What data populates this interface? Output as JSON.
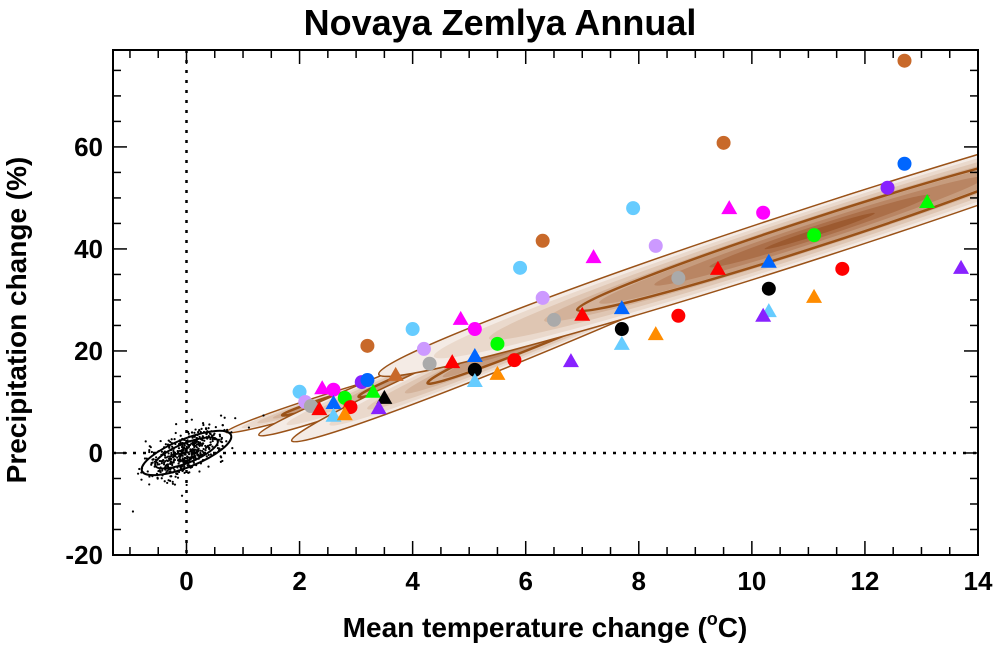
{
  "chart_data": {
    "type": "scatter",
    "title": "Novaya Zemlya Annual",
    "xlabel": "Mean temperature change (",
    "xlabel_degree": "o",
    "xlabel_unit_suffix": "C)",
    "ylabel": "Precipitation change (%)",
    "xlim": [
      -1.3,
      14
    ],
    "ylim": [
      -20,
      79
    ],
    "x_ticks": [
      0,
      2,
      4,
      6,
      8,
      10,
      12,
      14
    ],
    "x_tick_labels": [
      "0",
      "2",
      "4",
      "6",
      "8",
      "10",
      "12",
      "14"
    ],
    "x_minor_step": 0.5,
    "y_ticks": [
      -20,
      0,
      20,
      40,
      60
    ],
    "y_tick_labels": [
      "-20",
      "0",
      "20",
      "40",
      "60"
    ],
    "y_minor_step": 5,
    "grid": false,
    "reference_lines": {
      "x_zero": true,
      "y_zero": true,
      "style": "dotted"
    },
    "colors": {
      "red": "#ff0000",
      "magenta": "#ff00ff",
      "blue": "#0066ff",
      "lightblue": "#66ccff",
      "green": "#00ff00",
      "black": "#000000",
      "orange": "#ff8c00",
      "purple": "#8822ff",
      "lavender": "#cc99ff",
      "gray": "#aaaaaa",
      "brown": "#c8692a",
      "contour_line": "#9a5218"
    },
    "density_regions": [
      {
        "name": "period-1",
        "center": [
          2.9,
          11.5
        ],
        "semi_major": 2.3,
        "semi_minor": 2.6,
        "angle_deg": 17
      },
      {
        "name": "period-2",
        "center": [
          5.2,
          20.2
        ],
        "semi_major": 4.2,
        "semi_minor": 4.6,
        "angle_deg": 21
      },
      {
        "name": "period-3",
        "center": [
          7.2,
          27.5
        ],
        "semi_major": 5.8,
        "semi_minor": 6.2,
        "angle_deg": 23
      },
      {
        "name": "period-4",
        "center": [
          11.2,
          43.5
        ],
        "semi_major": 8.2,
        "semi_minor": 9.2,
        "angle_deg": 18
      }
    ],
    "control_scatter": {
      "name": "control-natural-variability",
      "center": [
        0.0,
        0.0
      ],
      "sd_x": 0.35,
      "sd_y": 2.6,
      "corr": 0.65,
      "n": 500,
      "color": "#000000"
    },
    "series": [
      {
        "name": "model-points",
        "points": [
          {
            "x": 2.0,
            "y": 12.0,
            "marker": "circle",
            "color": "lightblue"
          },
          {
            "x": 2.1,
            "y": 10.0,
            "marker": "circle",
            "color": "lavender"
          },
          {
            "x": 2.2,
            "y": 9.2,
            "marker": "circle",
            "color": "gray"
          },
          {
            "x": 2.35,
            "y": 8.6,
            "marker": "triangle",
            "color": "red"
          },
          {
            "x": 2.4,
            "y": 12.7,
            "marker": "triangle",
            "color": "magenta"
          },
          {
            "x": 2.6,
            "y": 12.4,
            "marker": "circle",
            "color": "magenta"
          },
          {
            "x": 2.6,
            "y": 9.8,
            "marker": "triangle",
            "color": "blue"
          },
          {
            "x": 2.6,
            "y": 7.3,
            "marker": "triangle",
            "color": "lightblue"
          },
          {
            "x": 2.8,
            "y": 10.8,
            "marker": "circle",
            "color": "green"
          },
          {
            "x": 2.9,
            "y": 9.0,
            "marker": "circle",
            "color": "red"
          },
          {
            "x": 2.8,
            "y": 7.6,
            "marker": "triangle",
            "color": "orange"
          },
          {
            "x": 3.1,
            "y": 13.9,
            "marker": "circle",
            "color": "purple"
          },
          {
            "x": 3.2,
            "y": 14.3,
            "marker": "circle",
            "color": "blue"
          },
          {
            "x": 3.3,
            "y": 12.0,
            "marker": "triangle",
            "color": "green"
          },
          {
            "x": 3.5,
            "y": 10.8,
            "marker": "triangle",
            "color": "black"
          },
          {
            "x": 3.4,
            "y": 8.8,
            "marker": "triangle",
            "color": "purple"
          },
          {
            "x": 3.2,
            "y": 21.0,
            "marker": "circle",
            "color": "brown"
          },
          {
            "x": 3.7,
            "y": 15.3,
            "marker": "triangle",
            "color": "brown"
          },
          {
            "x": 4.0,
            "y": 24.3,
            "marker": "circle",
            "color": "lightblue"
          },
          {
            "x": 4.2,
            "y": 20.4,
            "marker": "circle",
            "color": "lavender"
          },
          {
            "x": 4.3,
            "y": 17.5,
            "marker": "circle",
            "color": "gray"
          },
          {
            "x": 4.7,
            "y": 17.8,
            "marker": "triangle",
            "color": "red"
          },
          {
            "x": 4.85,
            "y": 26.3,
            "marker": "triangle",
            "color": "magenta"
          },
          {
            "x": 5.1,
            "y": 24.3,
            "marker": "circle",
            "color": "magenta"
          },
          {
            "x": 5.5,
            "y": 21.4,
            "marker": "circle",
            "color": "green"
          },
          {
            "x": 5.1,
            "y": 19.0,
            "marker": "triangle",
            "color": "blue"
          },
          {
            "x": 5.1,
            "y": 16.3,
            "marker": "circle",
            "color": "black"
          },
          {
            "x": 5.1,
            "y": 14.1,
            "marker": "triangle",
            "color": "lightblue"
          },
          {
            "x": 5.5,
            "y": 15.5,
            "marker": "triangle",
            "color": "orange"
          },
          {
            "x": 5.8,
            "y": 18.2,
            "marker": "circle",
            "color": "red"
          },
          {
            "x": 6.8,
            "y": 18.0,
            "marker": "triangle",
            "color": "purple"
          },
          {
            "x": 5.9,
            "y": 36.3,
            "marker": "circle",
            "color": "lightblue"
          },
          {
            "x": 6.3,
            "y": 41.6,
            "marker": "circle",
            "color": "brown"
          },
          {
            "x": 6.3,
            "y": 30.4,
            "marker": "circle",
            "color": "lavender"
          },
          {
            "x": 6.5,
            "y": 26.1,
            "marker": "circle",
            "color": "gray"
          },
          {
            "x": 7.0,
            "y": 27.1,
            "marker": "triangle",
            "color": "red"
          },
          {
            "x": 7.2,
            "y": 38.4,
            "marker": "triangle",
            "color": "magenta"
          },
          {
            "x": 7.9,
            "y": 48.0,
            "marker": "circle",
            "color": "lightblue"
          },
          {
            "x": 7.7,
            "y": 28.4,
            "marker": "triangle",
            "color": "blue"
          },
          {
            "x": 7.7,
            "y": 24.3,
            "marker": "circle",
            "color": "black"
          },
          {
            "x": 7.7,
            "y": 21.4,
            "marker": "triangle",
            "color": "lightblue"
          },
          {
            "x": 8.3,
            "y": 23.3,
            "marker": "triangle",
            "color": "orange"
          },
          {
            "x": 8.7,
            "y": 26.9,
            "marker": "circle",
            "color": "red"
          },
          {
            "x": 8.3,
            "y": 40.6,
            "marker": "circle",
            "color": "lavender"
          },
          {
            "x": 8.7,
            "y": 34.3,
            "marker": "circle",
            "color": "gray"
          },
          {
            "x": 9.5,
            "y": 60.8,
            "marker": "circle",
            "color": "brown"
          },
          {
            "x": 9.6,
            "y": 48.0,
            "marker": "triangle",
            "color": "magenta"
          },
          {
            "x": 10.2,
            "y": 47.1,
            "marker": "circle",
            "color": "magenta"
          },
          {
            "x": 9.4,
            "y": 36.1,
            "marker": "triangle",
            "color": "red"
          },
          {
            "x": 10.3,
            "y": 37.5,
            "marker": "triangle",
            "color": "blue"
          },
          {
            "x": 10.3,
            "y": 32.2,
            "marker": "circle",
            "color": "black"
          },
          {
            "x": 10.3,
            "y": 27.8,
            "marker": "triangle",
            "color": "lightblue"
          },
          {
            "x": 10.2,
            "y": 26.9,
            "marker": "triangle",
            "color": "purple"
          },
          {
            "x": 11.1,
            "y": 30.6,
            "marker": "triangle",
            "color": "orange"
          },
          {
            "x": 11.1,
            "y": 42.7,
            "marker": "circle",
            "color": "green"
          },
          {
            "x": 11.6,
            "y": 36.1,
            "marker": "circle",
            "color": "red"
          },
          {
            "x": 12.4,
            "y": 52.0,
            "marker": "circle",
            "color": "purple"
          },
          {
            "x": 12.7,
            "y": 56.7,
            "marker": "circle",
            "color": "blue"
          },
          {
            "x": 13.1,
            "y": 49.2,
            "marker": "triangle",
            "color": "green"
          },
          {
            "x": 13.7,
            "y": 36.3,
            "marker": "triangle",
            "color": "purple"
          },
          {
            "x": 12.7,
            "y": 76.9,
            "marker": "circle",
            "color": "brown"
          }
        ]
      }
    ]
  }
}
